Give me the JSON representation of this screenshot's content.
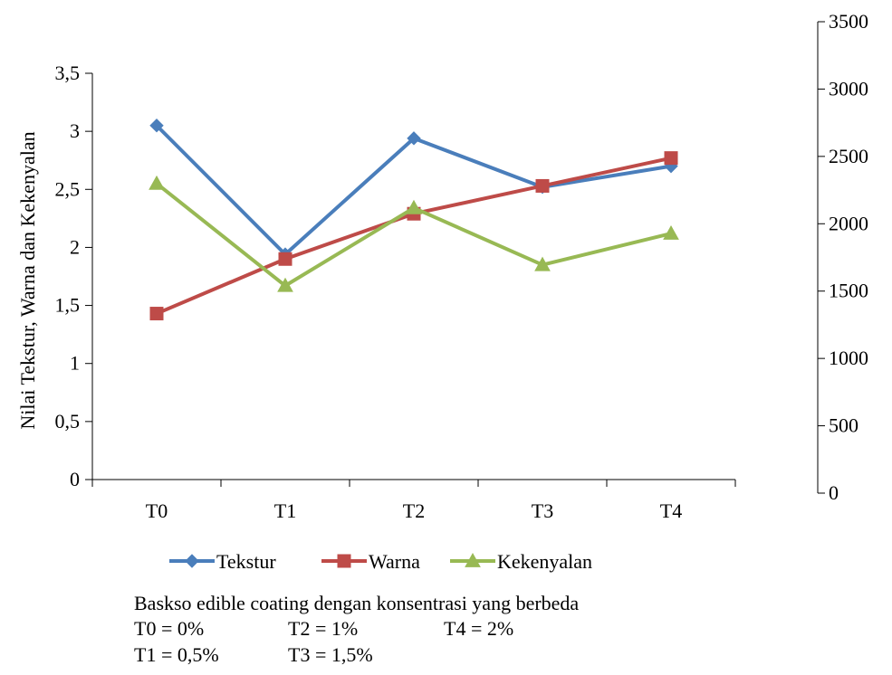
{
  "chart_data": {
    "type": "line",
    "categories": [
      "T0",
      "T1",
      "T2",
      "T3",
      "T4"
    ],
    "ylabel": "Nilai Tekstur, Warna dan Kekenyalan",
    "ylim": [
      0,
      3.5
    ],
    "yticks": [
      "0",
      "0,5",
      "1",
      "1,5",
      "2",
      "2,5",
      "3",
      "3,5"
    ],
    "y2lim": [
      0,
      3500
    ],
    "y2ticks": [
      "0",
      "500",
      "1000",
      "1500",
      "2000",
      "2500",
      "3000",
      "3500"
    ],
    "legend_position": "bottom",
    "grid": false,
    "series": [
      {
        "name": "Tekstur",
        "color": "#4A7EBB",
        "marker": "diamond",
        "values": [
          3.05,
          1.94,
          2.94,
          2.52,
          2.7
        ]
      },
      {
        "name": "Warna",
        "color": "#BE4B48",
        "marker": "square",
        "values": [
          1.43,
          1.9,
          2.29,
          2.53,
          2.77
        ]
      },
      {
        "name": "Kekenyalan",
        "color": "#98B954",
        "marker": "triangle",
        "values": [
          2.55,
          1.67,
          2.34,
          1.85,
          2.12
        ]
      }
    ]
  },
  "caption": {
    "title": "Baskso edible coating dengan konsentrasi yang berbeda",
    "notes": [
      "T0 = 0%",
      "T2 = 1%",
      "T4 = 2%",
      "T1 = 0,5%",
      "T3 = 1,5%"
    ]
  }
}
